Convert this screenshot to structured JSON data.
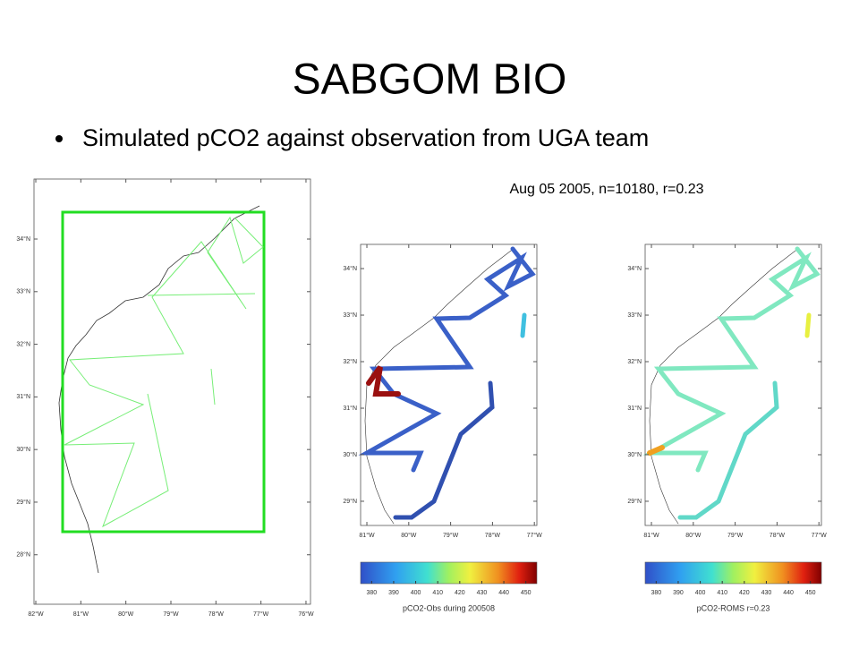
{
  "title": "SABGOM BIO",
  "bullet": "Simulated pCO2 against observation from UGA team",
  "annotation": "Aug 05 2005, n=10180, r=0.23",
  "maps": [
    {
      "xlim": [
        -82.04,
        -75.9
      ],
      "ylim": [
        27.06,
        35.14
      ],
      "xticks": [
        {
          "value": -82,
          "label": "82°W"
        },
        {
          "value": -81,
          "label": "81°W"
        },
        {
          "value": -80,
          "label": "80°W"
        },
        {
          "value": -79,
          "label": "79°W"
        },
        {
          "value": -78,
          "label": "78°W"
        },
        {
          "value": -77,
          "label": "77°W"
        },
        {
          "value": -76,
          "label": "76°W"
        }
      ],
      "yticks": [
        {
          "value": 34,
          "label": "34°N"
        },
        {
          "value": 33,
          "label": "33°N"
        },
        {
          "value": 32,
          "label": "32°N"
        },
        {
          "value": 31,
          "label": "31°N"
        },
        {
          "value": 30,
          "label": "30°N"
        },
        {
          "value": 29,
          "label": "29°N"
        },
        {
          "value": 28,
          "label": "28°N"
        }
      ]
    },
    {
      "xlim": [
        -81.15,
        -76.94
      ],
      "ylim": [
        28.48,
        34.52
      ],
      "xticks": [
        {
          "value": -81,
          "label": "81°W"
        },
        {
          "value": -80,
          "label": "80°W"
        },
        {
          "value": -79,
          "label": "79°W"
        },
        {
          "value": -78,
          "label": "78°W"
        },
        {
          "value": -77,
          "label": "77°W"
        }
      ],
      "yticks": [
        {
          "value": 34,
          "label": "34°N"
        },
        {
          "value": 33,
          "label": "33°N"
        },
        {
          "value": 32,
          "label": "32°N"
        },
        {
          "value": 31,
          "label": "31°N"
        },
        {
          "value": 30,
          "label": "30°N"
        },
        {
          "value": 29,
          "label": "29°N"
        }
      ],
      "colorbar": {
        "clim": [
          375,
          455
        ],
        "ticks": [
          380,
          390,
          400,
          410,
          420,
          430,
          440,
          450
        ],
        "label": "pCO2-Obs during 200508"
      }
    },
    {
      "xlim": [
        -81.15,
        -76.94
      ],
      "ylim": [
        28.48,
        34.52
      ],
      "xticks": [
        {
          "value": -81,
          "label": "81°W"
        },
        {
          "value": -80,
          "label": "80°W"
        },
        {
          "value": -79,
          "label": "79°W"
        },
        {
          "value": -78,
          "label": "78°W"
        },
        {
          "value": -77,
          "label": "77°W"
        }
      ],
      "yticks": [
        {
          "value": 34,
          "label": "34°N"
        },
        {
          "value": 33,
          "label": "33°N"
        },
        {
          "value": 32,
          "label": "32°N"
        },
        {
          "value": 31,
          "label": "31°N"
        },
        {
          "value": 30,
          "label": "30°N"
        },
        {
          "value": 29,
          "label": "29°N"
        }
      ],
      "colorbar": {
        "clim": [
          375,
          455
        ],
        "ticks": [
          380,
          390,
          400,
          410,
          420,
          430,
          440,
          450
        ],
        "label": "pCO2-ROMS r=0.23"
      }
    }
  ]
}
